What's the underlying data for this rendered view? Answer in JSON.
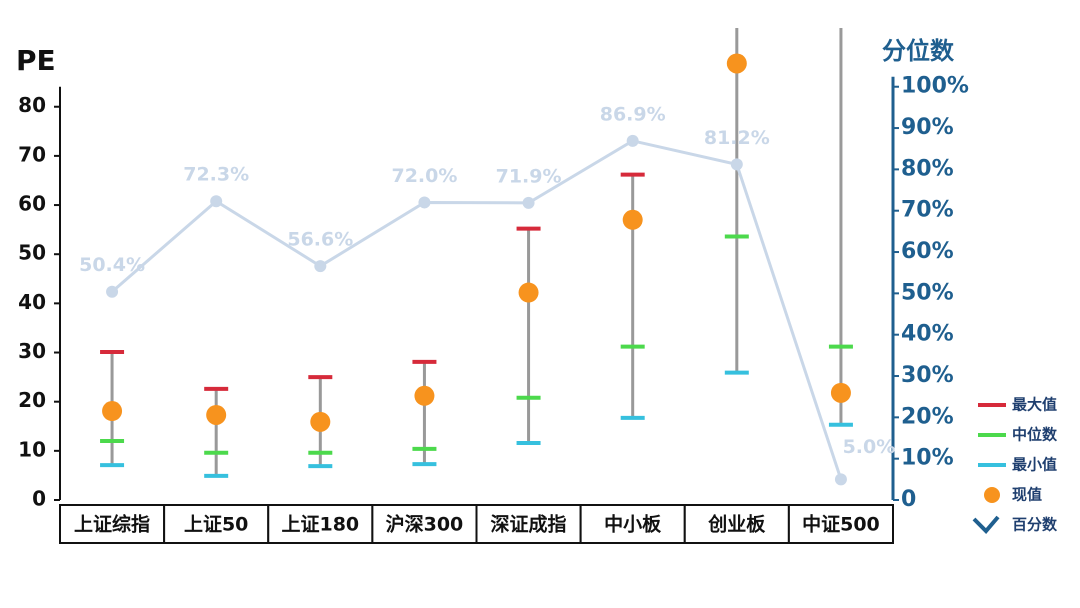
{
  "chart_data": {
    "type": "range",
    "y_label": "PE",
    "y2_label": "分位数",
    "categories": [
      "上证综指",
      "上证50",
      "上证180",
      "沪深300",
      "深证成指",
      "中小板",
      "创业板",
      "中证500"
    ],
    "ylim": [
      0,
      95
    ],
    "yticks": [
      0,
      10,
      20,
      30,
      40,
      50,
      60,
      70,
      80
    ],
    "y2lim": [
      0,
      113
    ],
    "y2ticks": [
      {
        "value": 0,
        "label": "0"
      },
      {
        "value": 10,
        "label": "10%"
      },
      {
        "value": 20,
        "label": "20%"
      },
      {
        "value": 30,
        "label": "30%"
      },
      {
        "value": 40,
        "label": "40%"
      },
      {
        "value": 50,
        "label": "50%"
      },
      {
        "value": 60,
        "label": "60%"
      },
      {
        "value": 70,
        "label": "70%"
      },
      {
        "value": 80,
        "label": "80%"
      },
      {
        "value": 90,
        "label": "90%"
      },
      {
        "value": 100,
        "label": "100%"
      }
    ],
    "series": [
      {
        "name": "最大值",
        "color": "#d62a3a",
        "values": [
          30.1,
          22.6,
          25,
          28.1,
          55.2,
          66.2,
          null,
          null
        ]
      },
      {
        "name": "中位数",
        "color": "#4cd94c",
        "values": [
          12,
          9.6,
          9.6,
          10.4,
          20.8,
          31.2,
          53.6,
          31.2
        ]
      },
      {
        "name": "最小值",
        "color": "#36c0de",
        "values": [
          7.1,
          4.9,
          6.9,
          7.3,
          11.6,
          16.7,
          25.9,
          15.3
        ]
      },
      {
        "name": "现值",
        "color": "#f7931e",
        "values": [
          18.1,
          17.3,
          15.9,
          21.2,
          42.2,
          57,
          88.8,
          21.8
        ]
      },
      {
        "name": "百分数",
        "color": "#c9d7e8",
        "axis": "y2",
        "values": [
          50.4,
          72.3,
          56.6,
          72.0,
          71.9,
          86.9,
          81.2,
          5.0
        ],
        "value_labels": [
          "50.4%",
          "72.3%",
          "56.6%",
          "72.0%",
          "71.9%",
          "86.9%",
          "81.2%",
          "5.0%"
        ]
      }
    ]
  }
}
